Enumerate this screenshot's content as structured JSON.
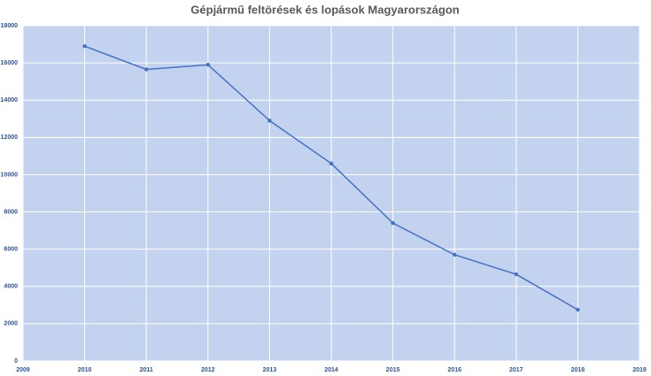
{
  "chart_data": {
    "type": "line",
    "title": "Gépjármű feltörések és lopások Magyarországon",
    "x": [
      2010,
      2011,
      2012,
      2013,
      2014,
      2015,
      2016,
      2017,
      2018
    ],
    "series": [
      {
        "color": "#4472c4",
        "values": [
          16900,
          15650,
          15900,
          12900,
          10600,
          7400,
          5700,
          4650,
          2750
        ]
      }
    ],
    "xlim": [
      2009,
      2019
    ],
    "xticks": [
      2009,
      2010,
      2011,
      2012,
      2013,
      2014,
      2015,
      2016,
      2017,
      2018,
      2019
    ],
    "ylim": [
      0,
      18000
    ],
    "yticks": [
      0,
      2000,
      4000,
      6000,
      8000,
      10000,
      12000,
      14000,
      16000,
      18000
    ],
    "grid": true
  }
}
